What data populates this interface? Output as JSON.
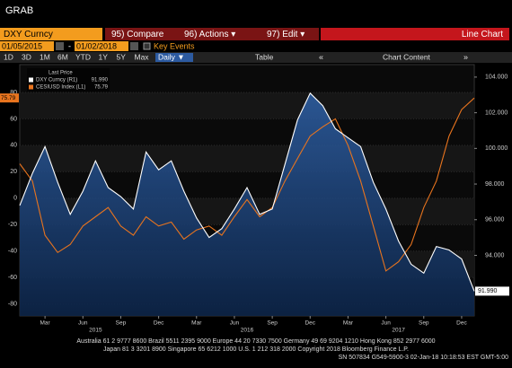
{
  "header": {
    "title": "GRAB"
  },
  "toolbar": {
    "security": "DXY Curncy",
    "compare": "95) Compare",
    "actions": "96) Actions ▾",
    "edit": "97) Edit ▾",
    "chart_type": "Line Chart",
    "start_date": "01/05/2015",
    "date_sep": "-",
    "end_date": "01/02/2018",
    "key_events": "Key Events",
    "ranges": [
      "1D",
      "3D",
      "1M",
      "6M",
      "YTD",
      "1Y",
      "5Y",
      "Max"
    ],
    "period": "Daily ▼",
    "table": "Table",
    "chart_content": "Chart Content"
  },
  "chart_data": {
    "type": "line",
    "legend_title": "Last Price",
    "categories": [
      null,
      null,
      "Mar",
      null,
      null,
      "Jun",
      null,
      null,
      "Sep",
      null,
      null,
      "Dec",
      null,
      null,
      "Mar",
      null,
      null,
      "Jun",
      null,
      null,
      "Sep",
      null,
      null,
      "Dec",
      null,
      null,
      "Mar",
      null,
      null,
      "Jun",
      null,
      null,
      "Sep",
      null,
      null,
      "Dec",
      null
    ],
    "years": [
      null,
      null,
      null,
      null,
      null,
      null,
      "2015",
      null,
      null,
      null,
      null,
      null,
      null,
      null,
      null,
      null,
      null,
      null,
      "2016",
      null,
      null,
      null,
      null,
      null,
      null,
      null,
      null,
      null,
      null,
      null,
      "2017",
      null,
      null,
      null,
      null,
      null,
      null
    ],
    "series": [
      {
        "name": "DXY Curncy (R1)",
        "color": "#ffffff",
        "axis": "y2",
        "values": [
          96.8,
          98.6,
          100.1,
          98.1,
          96.3,
          97.6,
          99.3,
          97.8,
          97.3,
          96.6,
          99.8,
          98.8,
          99.3,
          97.6,
          96.1,
          95.0,
          95.5,
          96.6,
          97.8,
          96.3,
          96.6,
          99.1,
          101.6,
          103.1,
          102.4,
          101.1,
          100.6,
          100.1,
          98.1,
          96.6,
          94.8,
          93.5,
          93.0,
          94.5,
          94.3,
          93.8,
          91.99
        ],
        "value_labels": [
          null,
          null,
          null,
          null,
          null,
          null,
          null,
          null,
          null,
          null,
          null,
          null,
          null,
          null,
          null,
          null,
          null,
          null,
          null,
          null,
          null,
          null,
          null,
          null,
          null,
          null,
          null,
          null,
          null,
          null,
          null,
          null,
          null,
          null,
          null,
          null,
          "91.990"
        ]
      },
      {
        "name": "CESIUSD Index (L1)",
        "color": "#e8741e",
        "values": [
          26,
          13,
          -28,
          -41,
          -35,
          -21,
          -14,
          -7,
          -21,
          -28,
          -14,
          -21,
          -18,
          -31,
          -24,
          -21,
          -28,
          -14,
          -1,
          -14,
          -7,
          13,
          30,
          47,
          54,
          60,
          40,
          13,
          -21,
          -55,
          -48,
          -35,
          -7,
          13,
          47,
          67,
          75.79
        ]
      }
    ],
    "ylim": [
      -89,
      101
    ],
    "yticks": [
      80,
      60,
      40,
      20,
      0,
      -20,
      -40,
      -60,
      -80
    ],
    "y2lim": [
      90.6,
      104.7
    ],
    "y2ticks": [
      {
        "value": 104,
        "label": "104.000"
      },
      {
        "value": 102,
        "label": "102.000"
      },
      {
        "value": 100,
        "label": "100.000"
      },
      {
        "value": 98,
        "label": "98.000"
      },
      {
        "value": 96,
        "label": "96.000"
      },
      {
        "value": 94,
        "label": "94.000"
      }
    ],
    "grid": true
  },
  "footer": {
    "lines": [
      "Australia 61 2 9777 8600 Brazil 5511 2395 9000 Europe 44 20 7330 7500 Germany 49 69 9204 1210 Hong Kong 852 2977 6000",
      "Japan 81 3 3201 8900         Singapore 65 6212 1000         U.S. 1 212 318 2000         Copyright 2018 Bloomberg Finance L.P.",
      "SN 507834 G549-5900-3 02-Jan-18 10:18:53 EST  GMT-5:00"
    ]
  }
}
